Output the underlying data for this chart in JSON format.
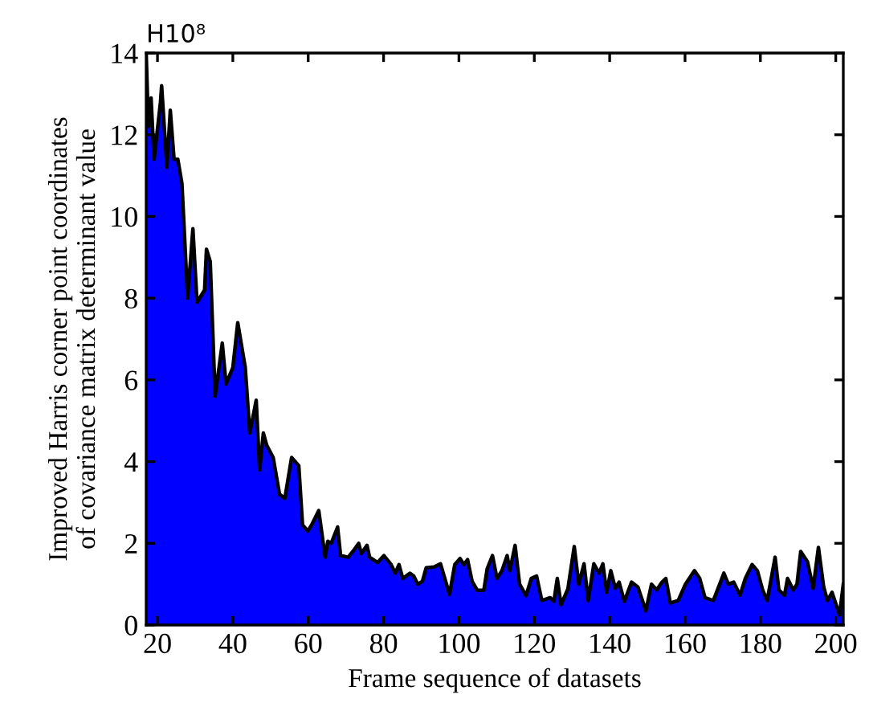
{
  "chart_data": {
    "type": "area",
    "xlabel": "Frame sequence of datasets",
    "ylabel": "Improved Harris corner point coordinates\nof covariance matrix determinant value",
    "annotations": [
      "H10⁸"
    ],
    "xlim": [
      17,
      202
    ],
    "ylim": [
      0,
      14
    ],
    "xticks": [
      20,
      40,
      60,
      80,
      100,
      120,
      140,
      160,
      180,
      200
    ],
    "yticks": [
      0,
      2,
      4,
      6,
      8,
      10,
      12,
      14
    ],
    "grid": false,
    "legend": false,
    "series": [
      {
        "color": "#0000ff",
        "x": [
          17,
          17.6,
          18.3,
          19.1,
          20.8,
          21.1,
          22.5,
          23.4,
          24.4,
          25.4,
          26.5,
          28,
          29.4,
          30.5,
          32.5,
          33,
          34,
          35.3,
          37.2,
          38.2,
          40,
          41.3,
          43.3,
          44.5,
          46.2,
          47.1,
          48.1,
          49,
          50.7,
          52.4,
          53.8,
          55.6,
          57.5,
          58.5,
          59.9,
          60.9,
          62.8,
          64.5,
          65.2,
          66.1,
          67.8,
          68.6,
          70.6,
          72,
          73.4,
          74.1,
          75.6,
          76.3,
          78.4,
          80.1,
          82,
          83.1,
          84.1,
          85.1,
          87,
          88,
          89.1,
          90.3,
          91.3,
          93.4,
          95.1,
          97.5,
          98.9,
          100.3,
          101.3,
          102.3,
          103.5,
          104.9,
          106.6,
          107.5,
          108.9,
          110.1,
          111.4,
          112.8,
          113.5,
          114.9,
          116.1,
          117.8,
          119.2,
          120.6,
          122,
          124.2,
          125.2,
          126.1,
          127.1,
          128.9,
          130.6,
          131.8,
          133.2,
          134.3,
          135.8,
          137.2,
          138.2,
          139.2,
          140.3,
          141.5,
          142.5,
          143.9,
          145.8,
          147.5,
          149.6,
          151.1,
          152.5,
          153.9,
          154.9,
          156.1,
          158.2,
          160.1,
          162.5,
          163.9,
          165.3,
          167.5,
          169.2,
          170.3,
          171.5,
          172.9,
          174.6,
          176,
          177.8,
          179.2,
          180.6,
          181.8,
          183.9,
          184.9,
          186.4,
          187.2,
          188.7,
          189.7,
          190.7,
          192.5,
          194,
          195.4,
          196.8,
          197.8,
          199,
          201,
          202
        ],
        "values": [
          14,
          12.2,
          12.9,
          11.4,
          12.8,
          13.2,
          11.2,
          12.6,
          11.4,
          11.4,
          10.8,
          8,
          9.7,
          7.9,
          8.2,
          9.2,
          8.9,
          5.6,
          6.9,
          5.9,
          6.3,
          7.4,
          6.3,
          4.7,
          5.5,
          3.8,
          4.7,
          4.4,
          4.1,
          3.2,
          3.1,
          4.1,
          3.9,
          2.45,
          2.3,
          2.45,
          2.8,
          1.66,
          2.05,
          2,
          2.4,
          1.7,
          1.66,
          1.82,
          2,
          1.75,
          1.95,
          1.66,
          1.53,
          1.7,
          1.48,
          1.27,
          1.48,
          1.14,
          1.27,
          1.2,
          1,
          1.07,
          1.4,
          1.42,
          1.5,
          0.75,
          1.48,
          1.63,
          1.48,
          1.6,
          1.07,
          0.85,
          0.85,
          1.38,
          1.7,
          1.14,
          1.33,
          1.7,
          1.33,
          1.95,
          1,
          0.72,
          1.14,
          1.2,
          0.6,
          0.67,
          0.58,
          1.14,
          0.5,
          0.88,
          1.92,
          1,
          1.5,
          0.6,
          1.5,
          1.27,
          1.5,
          0.8,
          1.33,
          0.9,
          1.05,
          0.58,
          1.05,
          0.93,
          0.35,
          1,
          0.86,
          1.05,
          1.14,
          0.54,
          0.6,
          1,
          1.33,
          1.14,
          0.67,
          0.6,
          1,
          1.27,
          1,
          1.05,
          0.73,
          1.14,
          1.48,
          1.33,
          0.86,
          0.6,
          1.66,
          0.86,
          0.73,
          1.14,
          0.86,
          1,
          1.8,
          1.55,
          0.9,
          1.9,
          0.93,
          0.6,
          0.8,
          0.25,
          1
        ]
      }
    ]
  }
}
